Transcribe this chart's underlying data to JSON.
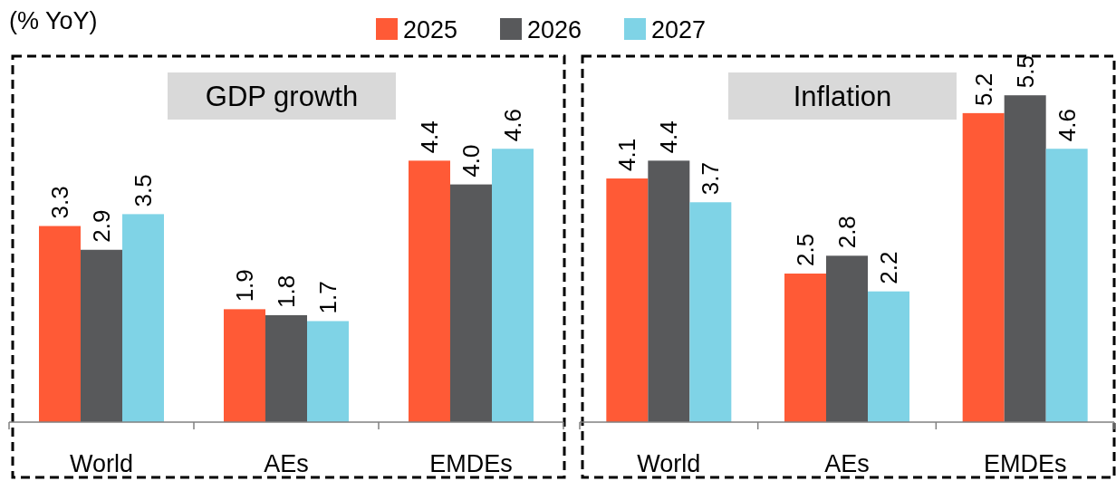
{
  "chart_data": [
    {
      "type": "bar",
      "title": "GDP growth",
      "ylabel": "(% YoY)",
      "categories": [
        "World",
        "AEs",
        "EMDEs"
      ],
      "legend": "top",
      "series": [
        {
          "name": "2025",
          "color": "#ff5a36",
          "values": [
            3.3,
            1.9,
            4.4
          ],
          "value_labels": [
            "3.3",
            "1.9",
            "4.4"
          ]
        },
        {
          "name": "2026",
          "color": "#58595b",
          "values": [
            2.9,
            1.8,
            4.0
          ],
          "value_labels": [
            "2.9",
            "1.8",
            "4.0"
          ]
        },
        {
          "name": "2027",
          "color": "#7fd3e6",
          "values": [
            3.5,
            1.7,
            4.6
          ],
          "value_labels": [
            "3.5",
            "1.7",
            "4.6"
          ]
        }
      ]
    },
    {
      "type": "bar",
      "title": "Inflation",
      "categories": [
        "World",
        "AEs",
        "EMDEs"
      ],
      "series": [
        {
          "color": "#ff5a36",
          "values": [
            4.1,
            2.5,
            5.2
          ],
          "value_labels": [
            "4.1",
            "2.5",
            "5.2"
          ]
        },
        {
          "color": "#58595b",
          "values": [
            4.4,
            2.8,
            5.5
          ],
          "value_labels": [
            "4.4",
            "2.8",
            "5.5"
          ]
        },
        {
          "color": "#7fd3e6",
          "values": [
            3.7,
            2.2,
            4.6
          ],
          "value_labels": [
            "3.7",
            "2.2",
            "4.6"
          ]
        }
      ]
    }
  ]
}
